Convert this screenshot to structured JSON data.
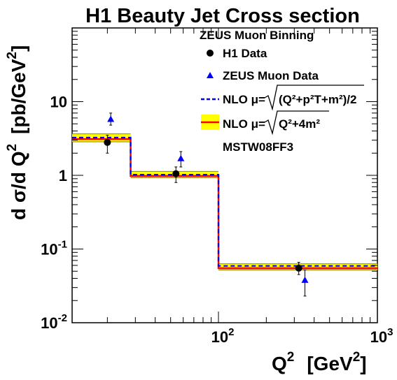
{
  "chart_data": {
    "type": "step-line-with-points",
    "title": "H1 Beauty Jet Cross section",
    "xlabel": {
      "main": "Q",
      "sup": "2",
      "unit_open": "[GeV",
      "unit_sup": "2",
      "unit_close": "]"
    },
    "ylabel": {
      "main": "d σ/d Q",
      "sup": "2",
      "unit_open": "[pb/GeV",
      "unit_sup": "2",
      "unit_close": "]"
    },
    "x_scale": "log",
    "y_scale": "log",
    "xlim": [
      12,
      1000
    ],
    "ylim": [
      0.01,
      100
    ],
    "x_ticks": [
      {
        "value": 100,
        "base": "10",
        "exp": "2"
      },
      {
        "value": 1000,
        "base": "10",
        "exp": "3"
      }
    ],
    "y_ticks": [
      {
        "value": 0.01,
        "base": "10",
        "exp": "-2"
      },
      {
        "value": 0.1,
        "base": "10",
        "exp": "-1"
      },
      {
        "value": 1,
        "base": "1",
        "exp": ""
      },
      {
        "value": 10,
        "base": "10",
        "exp": ""
      }
    ],
    "bins": [
      {
        "xlo": 12,
        "xhi": 28,
        "nlo_dashed": 3.25,
        "nlo_band_lo": 2.85,
        "nlo_band_hi": 3.65,
        "nlo_solid": 3.1
      },
      {
        "xlo": 28,
        "xhi": 100,
        "nlo_dashed": 1.02,
        "nlo_band_lo": 0.93,
        "nlo_band_hi": 1.13,
        "nlo_solid": 0.98
      },
      {
        "xlo": 100,
        "xhi": 1000,
        "nlo_dashed": 0.059,
        "nlo_band_lo": 0.052,
        "nlo_band_hi": 0.063,
        "nlo_solid": 0.055
      }
    ],
    "series": [
      {
        "name": "H1 Data",
        "marker": "circle",
        "color": "#000000",
        "points": [
          {
            "x": 20,
            "y": 2.8,
            "ylo": 2.0,
            "yhi": 3.5
          },
          {
            "x": 54,
            "y": 1.05,
            "ylo": 0.8,
            "yhi": 1.3
          },
          {
            "x": 320,
            "y": 0.055,
            "ylo": 0.045,
            "yhi": 0.066
          }
        ]
      },
      {
        "name": "ZEUS Muon Data",
        "marker": "triangle",
        "color": "#0000ff",
        "points": [
          {
            "x": 21,
            "y": 5.8,
            "ylo": 4.8,
            "yhi": 7.0
          },
          {
            "x": 58,
            "y": 1.7,
            "ylo": 1.3,
            "yhi": 2.1
          },
          {
            "x": 350,
            "y": 0.038,
            "ylo": 0.023,
            "yhi": 0.052
          }
        ]
      }
    ],
    "legend": {
      "placement": "top-right",
      "header": "ZEUS Muon Binning",
      "entries": [
        {
          "label": "H1 Data",
          "marker": "circle"
        },
        {
          "label": "ZEUS Muon Data",
          "marker": "triangle"
        },
        {
          "label": "NLO μ=",
          "formula": "(Q²+p²T+m²)/2",
          "style": "dashed-blue"
        },
        {
          "label": "NLO μ=",
          "formula": "Q²+4m²",
          "style": "red-line-yellow-band"
        }
      ],
      "pdf_note": "MSTW08FF3"
    },
    "colors": {
      "band_fill": "#ffff00",
      "band_edge": "#8a8a00",
      "nlo_solid": "#ff0000",
      "nlo_dashed": "#0000ff",
      "h1": "#000000",
      "zeus": "#0000ff"
    }
  }
}
